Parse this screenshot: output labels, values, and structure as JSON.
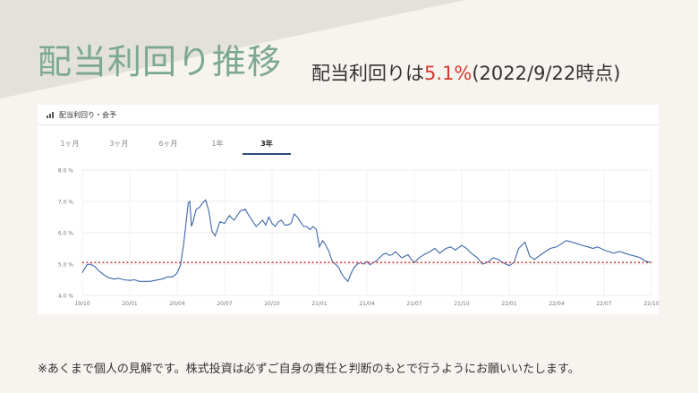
{
  "title": "配当利回り推移",
  "subtitle": {
    "prefix": "配当利回りは",
    "highlight": "5.1%",
    "suffix": "(2022/9/22時点)"
  },
  "panel": {
    "title": "配当利回り・会予",
    "icon": "bar-chart-icon",
    "tabs": [
      {
        "label": "1ヶ月",
        "active": false
      },
      {
        "label": "3ヶ月",
        "active": false
      },
      {
        "label": "6ヶ月",
        "active": false
      },
      {
        "label": "1年",
        "active": false
      },
      {
        "label": "3年",
        "active": true
      }
    ]
  },
  "note": "※あくまで個人の見解です。株式投資は必ずご自身の責任と判断のもとで行うようにお願いいたします。",
  "colors": {
    "title": "#7da890",
    "highlight": "#d23a2e",
    "line": "#3d66a8",
    "reference": "#d23a2e"
  },
  "chart_data": {
    "type": "line",
    "x_ticks": [
      "19/10",
      "20/01",
      "20/04",
      "20/07",
      "20/10",
      "21/01",
      "21/04",
      "21/07",
      "21/10",
      "22/01",
      "22/04",
      "22/07",
      "22/10"
    ],
    "y_ticks": [
      "4.0 %",
      "5.0 %",
      "6.0 %",
      "7.0 %",
      "8.0 %"
    ],
    "ylim": [
      4.0,
      8.0
    ],
    "reference_line": 5.05,
    "grid": true,
    "series": [
      {
        "x": [
          0,
          0.1,
          0.2,
          0.3,
          0.5,
          0.8,
          1,
          1.3,
          1.6,
          2,
          2.3,
          2.6,
          3,
          3.3,
          3.6,
          4,
          4.3,
          4.6,
          5,
          5.2,
          5.4,
          5.6,
          5.8,
          6,
          6.2,
          6.4,
          6.6,
          6.7,
          6.8,
          6.9,
          7,
          7.2,
          7.4,
          7.6,
          7.8,
          8,
          8.2,
          8.4,
          8.7,
          9,
          9.3,
          9.6,
          10,
          10.3,
          10.6,
          11,
          11.2,
          11.4,
          11.6,
          11.8,
          12,
          12.2,
          12.4,
          12.6,
          12.8,
          13,
          13.2,
          13.4,
          13.6,
          13.8,
          14,
          14.2,
          14.4,
          14.6,
          14.8,
          15,
          15.2,
          15.4,
          15.6,
          15.8,
          16,
          16.2,
          16.4,
          16.6,
          16.8,
          17,
          17.2,
          17.4,
          17.6,
          17.8,
          18,
          18.2,
          18.4,
          18.6,
          18.8,
          19,
          19.2,
          19.4,
          19.6,
          19.8,
          20,
          20.2,
          20.4,
          20.6,
          20.8,
          21,
          21.3,
          21.6,
          22,
          22.3,
          22.6,
          23,
          23.3,
          23.6,
          24,
          24.3,
          24.6,
          25,
          25.3,
          25.6,
          26,
          26.3,
          26.6,
          27,
          27.3,
          27.6,
          28,
          28.3,
          28.6,
          29,
          29.3,
          29.6,
          30,
          30.3,
          30.6,
          31,
          31.3,
          31.6,
          32,
          32.3,
          32.6,
          33,
          33.3,
          33.6,
          34,
          34.3,
          34.6,
          35,
          35.3,
          35.6,
          36
        ],
        "values": [
          4.72,
          4.82,
          4.9,
          4.98,
          5.0,
          4.92,
          4.8,
          4.68,
          4.58,
          4.52,
          4.55,
          4.5,
          4.48,
          4.5,
          4.45,
          4.45,
          4.45,
          4.48,
          4.52,
          4.55,
          4.6,
          4.58,
          4.62,
          4.72,
          4.95,
          5.6,
          6.5,
          6.95,
          7.0,
          6.2,
          6.35,
          6.75,
          6.8,
          6.95,
          7.05,
          6.7,
          6.05,
          5.9,
          6.35,
          6.3,
          6.55,
          6.4,
          6.7,
          6.75,
          6.5,
          6.2,
          6.3,
          6.4,
          6.25,
          6.5,
          6.3,
          6.2,
          6.35,
          6.4,
          6.25,
          6.25,
          6.3,
          6.6,
          6.5,
          6.35,
          6.2,
          6.2,
          6.1,
          6.2,
          6.1,
          5.55,
          5.75,
          5.6,
          5.4,
          5.1,
          5.0,
          4.9,
          4.7,
          4.55,
          4.45,
          4.7,
          4.9,
          5.0,
          5.05,
          5.0,
          5.08,
          4.98,
          5.05,
          5.1,
          5.2,
          5.3,
          5.35,
          5.28,
          5.3,
          5.4,
          5.3,
          5.2,
          5.25,
          5.3,
          5.15,
          5.05,
          5.2,
          5.3,
          5.4,
          5.5,
          5.35,
          5.5,
          5.55,
          5.45,
          5.6,
          5.5,
          5.35,
          5.2,
          5.0,
          5.05,
          5.2,
          5.15,
          5.05,
          4.95,
          5.05,
          5.5,
          5.7,
          5.25,
          5.15,
          5.3,
          5.4,
          5.5,
          5.55,
          5.65,
          5.75,
          5.7,
          5.65,
          5.6,
          5.55,
          5.5,
          5.55,
          5.45,
          5.4,
          5.35,
          5.4,
          5.35,
          5.3,
          5.25,
          5.2,
          5.1,
          5.05
        ]
      }
    ]
  }
}
